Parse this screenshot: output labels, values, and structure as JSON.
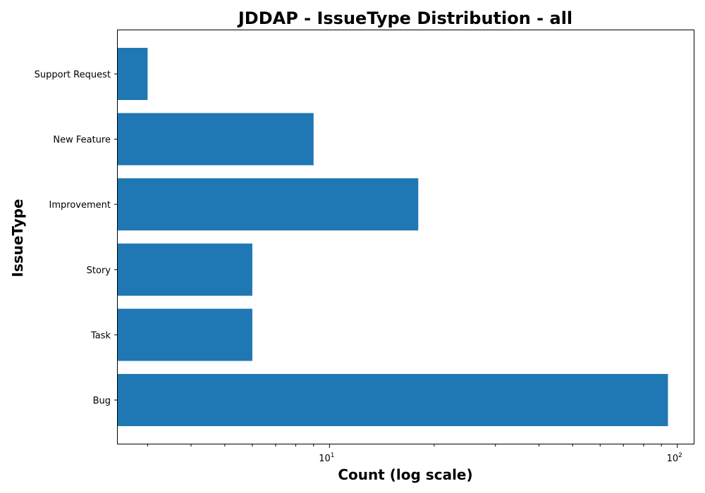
{
  "chart_data": {
    "type": "bar",
    "orientation": "horizontal",
    "title": "JDDAP - IssueType Distribution - all",
    "xlabel": "Count (log scale)",
    "ylabel": "IssueType",
    "x_scale": "log",
    "xlim": [
      2.45,
      112
    ],
    "x_ticks": [
      {
        "value": 10,
        "base": "10",
        "exp": "1"
      },
      {
        "value": 100,
        "base": "10",
        "exp": "2"
      }
    ],
    "categories": [
      "Bug",
      "Task",
      "Story",
      "Improvement",
      "New Feature",
      "Support Request"
    ],
    "values": [
      94,
      6,
      6,
      18,
      9,
      3
    ],
    "bar_color": "#1f77b4",
    "grid": false
  }
}
